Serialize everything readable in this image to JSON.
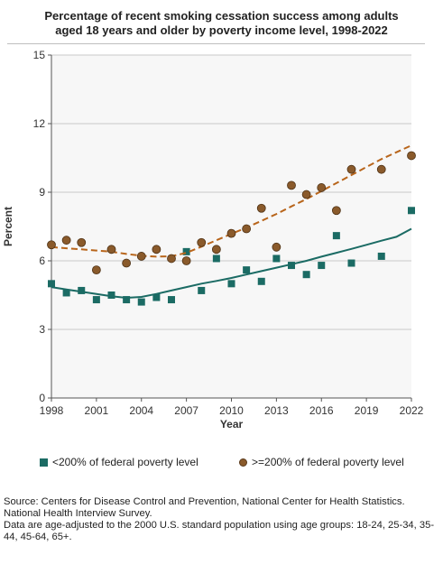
{
  "chart_data": {
    "type": "scatter",
    "title_lines": [
      "Percentage of recent smoking cessation success among adults",
      "aged 18 years and older by poverty income level, 1998-2022"
    ],
    "xlabel": "Year",
    "ylabel": "Percent",
    "xlim": [
      1998,
      2022
    ],
    "ylim": [
      0,
      15
    ],
    "x_ticks": [
      "1998",
      "2001",
      "2004",
      "2007",
      "2010",
      "2013",
      "2016",
      "2019",
      "2022"
    ],
    "y_ticks": [
      "0",
      "3",
      "6",
      "9",
      "12",
      "15"
    ],
    "grid": true,
    "legend_position": "bottom",
    "series": [
      {
        "name": "<200% of federal poverty level",
        "marker": "square",
        "color": "#1b6b64",
        "trend_color": "#1b6b64",
        "trend_style": "solid",
        "points": [
          [
            1998,
            5.0
          ],
          [
            1999,
            4.6
          ],
          [
            2000,
            4.7
          ],
          [
            2001,
            4.3
          ],
          [
            2002,
            4.5
          ],
          [
            2003,
            4.3
          ],
          [
            2004,
            4.2
          ],
          [
            2005,
            4.4
          ],
          [
            2006,
            4.3
          ],
          [
            2007,
            6.4
          ],
          [
            2008,
            4.7
          ],
          [
            2009,
            6.1
          ],
          [
            2010,
            5.0
          ],
          [
            2011,
            5.6
          ],
          [
            2012,
            5.1
          ],
          [
            2013,
            6.1
          ],
          [
            2014,
            5.8
          ],
          [
            2015,
            5.4
          ],
          [
            2016,
            5.8
          ],
          [
            2017,
            7.1
          ],
          [
            2018,
            5.9
          ],
          [
            2020,
            6.2
          ],
          [
            2022,
            8.2
          ]
        ],
        "trend": [
          [
            1998,
            4.85
          ],
          [
            1999,
            4.75
          ],
          [
            2000,
            4.65
          ],
          [
            2001,
            4.55
          ],
          [
            2002,
            4.45
          ],
          [
            2003,
            4.38
          ],
          [
            2004,
            4.42
          ],
          [
            2005,
            4.55
          ],
          [
            2006,
            4.7
          ],
          [
            2007,
            4.85
          ],
          [
            2008,
            5.0
          ],
          [
            2009,
            5.12
          ],
          [
            2010,
            5.25
          ],
          [
            2011,
            5.4
          ],
          [
            2012,
            5.55
          ],
          [
            2013,
            5.7
          ],
          [
            2014,
            5.85
          ],
          [
            2015,
            6.0
          ],
          [
            2016,
            6.18
          ],
          [
            2017,
            6.35
          ],
          [
            2018,
            6.52
          ],
          [
            2019,
            6.7
          ],
          [
            2020,
            6.88
          ],
          [
            2021,
            7.05
          ],
          [
            2022,
            7.4
          ]
        ]
      },
      {
        "name": ">=200% of federal poverty level",
        "marker": "circle",
        "color": "#8a5a2b",
        "trend_color": "#b8651b",
        "trend_style": "dashed",
        "points": [
          [
            1998,
            6.7
          ],
          [
            1999,
            6.9
          ],
          [
            2000,
            6.8
          ],
          [
            2001,
            5.6
          ],
          [
            2002,
            6.5
          ],
          [
            2003,
            5.9
          ],
          [
            2004,
            6.2
          ],
          [
            2005,
            6.5
          ],
          [
            2006,
            6.1
          ],
          [
            2007,
            6.0
          ],
          [
            2008,
            6.8
          ],
          [
            2009,
            6.5
          ],
          [
            2010,
            7.2
          ],
          [
            2011,
            7.4
          ],
          [
            2012,
            8.3
          ],
          [
            2013,
            6.6
          ],
          [
            2014,
            9.3
          ],
          [
            2015,
            8.9
          ],
          [
            2016,
            9.2
          ],
          [
            2017,
            8.2
          ],
          [
            2018,
            10.0
          ],
          [
            2020,
            10.0
          ],
          [
            2022,
            10.6
          ]
        ],
        "trend": [
          [
            1998,
            6.6
          ],
          [
            1999,
            6.55
          ],
          [
            2000,
            6.5
          ],
          [
            2001,
            6.45
          ],
          [
            2002,
            6.4
          ],
          [
            2003,
            6.3
          ],
          [
            2004,
            6.22
          ],
          [
            2005,
            6.18
          ],
          [
            2006,
            6.2
          ],
          [
            2007,
            6.35
          ],
          [
            2008,
            6.62
          ],
          [
            2009,
            6.9
          ],
          [
            2010,
            7.18
          ],
          [
            2011,
            7.45
          ],
          [
            2012,
            7.75
          ],
          [
            2013,
            8.05
          ],
          [
            2014,
            8.38
          ],
          [
            2015,
            8.7
          ],
          [
            2016,
            9.05
          ],
          [
            2017,
            9.4
          ],
          [
            2018,
            9.75
          ],
          [
            2019,
            10.1
          ],
          [
            2020,
            10.45
          ],
          [
            2021,
            10.75
          ],
          [
            2022,
            11.05
          ]
        ]
      }
    ]
  },
  "legend": {
    "low_income_label": "<200% of federal poverty level",
    "high_income_label": ">=200% of federal poverty level"
  },
  "source": {
    "line1": "Source: Centers for Disease Control and Prevention, National Center for Health Statistics. National Health Interview Survey.",
    "line2": "Data are age-adjusted to the 2000 U.S. standard population using age groups: 18-24, 25-34, 35-44, 45-64, 65+."
  }
}
